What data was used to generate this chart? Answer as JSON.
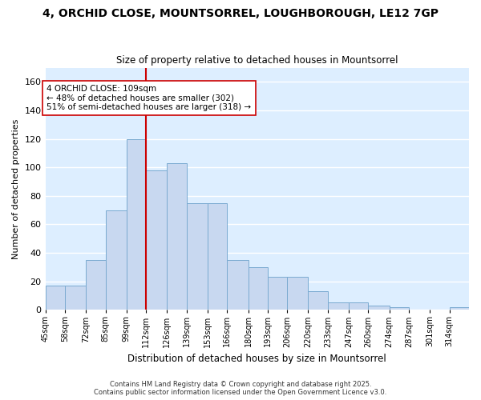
{
  "title_line1": "4, ORCHID CLOSE, MOUNTSORREL, LOUGHBOROUGH, LE12 7GP",
  "title_line2": "Size of property relative to detached houses in Mountsorrel",
  "xlabel": "Distribution of detached houses by size in Mountsorrel",
  "ylabel": "Number of detached properties",
  "bin_labels": [
    "45sqm",
    "58sqm",
    "72sqm",
    "85sqm",
    "99sqm",
    "112sqm",
    "126sqm",
    "139sqm",
    "153sqm",
    "166sqm",
    "180sqm",
    "193sqm",
    "206sqm",
    "220sqm",
    "233sqm",
    "247sqm",
    "260sqm",
    "274sqm",
    "287sqm",
    "301sqm",
    "314sqm"
  ],
  "bar_values": [
    17,
    17,
    35,
    70,
    120,
    98,
    103,
    75,
    75,
    35,
    30,
    23,
    23,
    13,
    5,
    5,
    3,
    2,
    0,
    0,
    2
  ],
  "bar_color": "#c8d8f0",
  "bar_edge_color": "#7aaad0",
  "vline_x": 112,
  "vline_color": "#cc0000",
  "annotation_text": "4 ORCHID CLOSE: 109sqm\n← 48% of detached houses are smaller (302)\n51% of semi-detached houses are larger (318) →",
  "annotation_box_color": "#ffffff",
  "annotation_box_edge": "#cc0000",
  "ylim": [
    0,
    170
  ],
  "yticks": [
    0,
    20,
    40,
    60,
    80,
    100,
    120,
    140,
    160
  ],
  "background_color": "#ddeeff",
  "grid_color": "#ffffff",
  "footer": "Contains HM Land Registry data © Crown copyright and database right 2025.\nContains public sector information licensed under the Open Government Licence v3.0.",
  "bin_edges": [
    45,
    58,
    72,
    85,
    99,
    112,
    126,
    139,
    153,
    166,
    180,
    193,
    206,
    220,
    233,
    247,
    260,
    274,
    287,
    301,
    314,
    327
  ]
}
